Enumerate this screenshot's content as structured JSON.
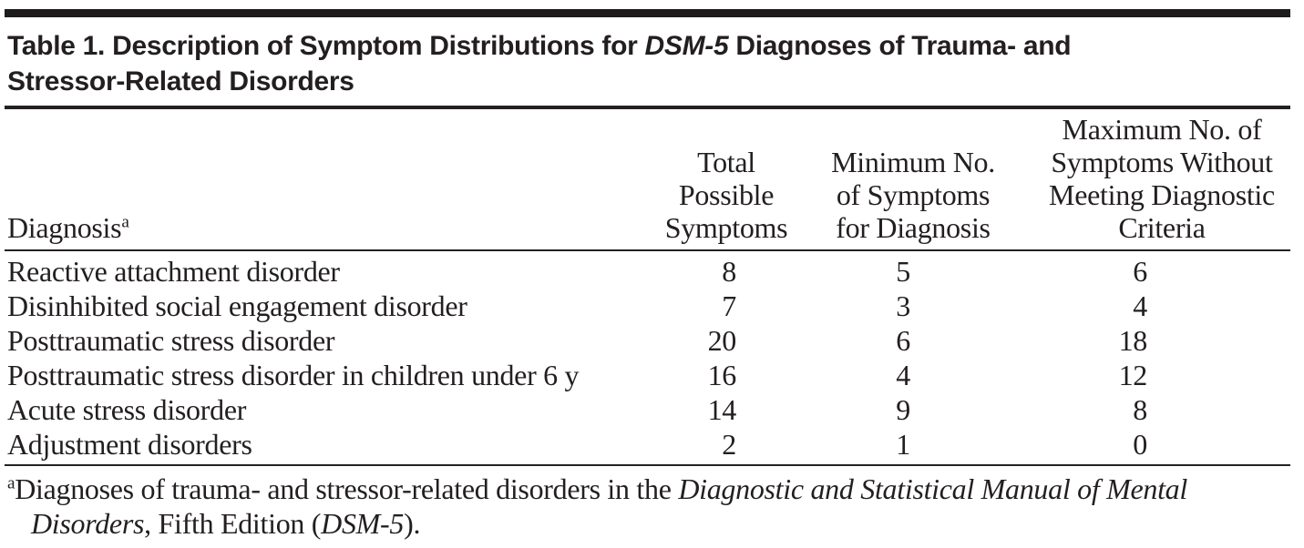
{
  "title": {
    "line1_prefix": "Table 1. Description of Symptom Distributions for ",
    "line1_italic": "DSM-5",
    "line1_suffix": " Diagnoses of Trauma- and",
    "line2": "Stressor-Related Disorders"
  },
  "header": {
    "diagnosis": "Diagnosis",
    "diagnosis_sup": "a",
    "total": "Total Possible Symptoms",
    "minimum": "Minimum No. of Symptoms for Diagnosis",
    "maximum": "Maximum No. of Symptoms Without Meeting Diagnostic Criteria"
  },
  "rows": [
    {
      "diagnosis": "Reactive attachment disorder",
      "total": "8",
      "min": "5",
      "max": "6"
    },
    {
      "diagnosis": "Disinhibited social engagement disorder",
      "total": "7",
      "min": "3",
      "max": "4"
    },
    {
      "diagnosis": "Posttraumatic stress disorder",
      "total": "20",
      "min": "6",
      "max": "18"
    },
    {
      "diagnosis": "Posttraumatic stress disorder in children under 6 y",
      "total": "16",
      "min": "4",
      "max": "12"
    },
    {
      "diagnosis": "Acute stress disorder",
      "total": "14",
      "min": "9",
      "max": "8"
    },
    {
      "diagnosis": "Adjustment disorders",
      "total": "2",
      "min": "1",
      "max": "0"
    }
  ],
  "footnote": {
    "marker": "a",
    "part1": "Diagnoses of trauma- and stressor-related disorders in the ",
    "italic1_line1": "Diagnostic and Statistical Manual of Mental",
    "italic1_line2": "Disorders",
    "part2": ", Fifth Edition (",
    "italic2": "DSM-5",
    "part3": ")."
  },
  "colors": {
    "text": "#231f20",
    "rule": "#242122",
    "bar": "#1d1b1c",
    "background": "#ffffff"
  }
}
